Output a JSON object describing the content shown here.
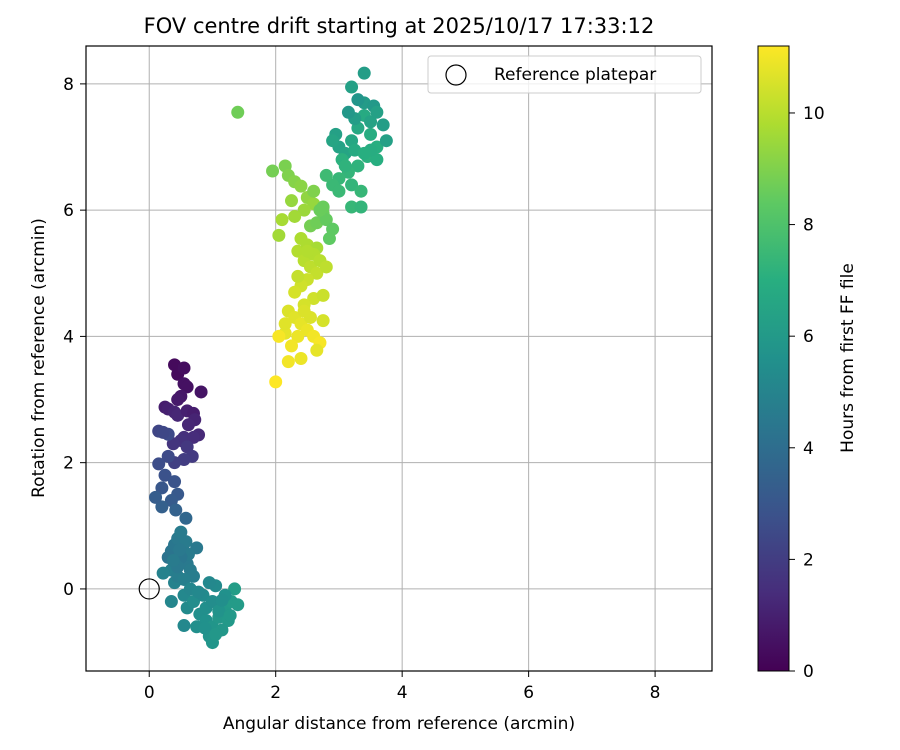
{
  "chart_data": {
    "type": "scatter",
    "title": "FOV centre drift starting at 2025/10/17 17:33:12",
    "xlabel": "Angular distance from reference (arcmin)",
    "ylabel": "Rotation from reference (arcmin)",
    "xlim": [
      -1.0,
      8.9
    ],
    "ylim": [
      -1.3,
      8.6
    ],
    "xticks": [
      0,
      2,
      4,
      6,
      8
    ],
    "yticks": [
      0,
      2,
      4,
      6,
      8
    ],
    "grid": true,
    "legend": {
      "position": "top-right",
      "label": "Reference platepar"
    },
    "reference_point": {
      "x": 0,
      "y": 0
    },
    "colorbar": {
      "label": "Hours from first FF file",
      "min": 0,
      "max": 11.2,
      "ticks": [
        0,
        2,
        4,
        6,
        8,
        10
      ],
      "colormap": "viridis"
    },
    "series": [
      {
        "points": [
          [
            0.4,
            3.55
          ],
          [
            0.45,
            3.4
          ],
          [
            0.55,
            3.5
          ],
          [
            0.55,
            3.25
          ],
          [
            0.6,
            3.2
          ],
          [
            0.82,
            3.12
          ],
          [
            0.5,
            3.05
          ],
          [
            0.45,
            3.0
          ],
          [
            0.25,
            2.88
          ],
          [
            0.3,
            2.85
          ],
          [
            0.4,
            2.8
          ],
          [
            0.45,
            2.75
          ],
          [
            0.6,
            2.82
          ],
          [
            0.7,
            2.78
          ],
          [
            0.72,
            2.68
          ],
          [
            0.62,
            2.6
          ],
          [
            0.78,
            2.44
          ],
          [
            0.7,
            2.4
          ],
          [
            0.55,
            2.4
          ],
          [
            0.5,
            2.35
          ],
          [
            0.38,
            2.3
          ],
          [
            0.3,
            2.45
          ],
          [
            0.15,
            2.5
          ],
          [
            0.22,
            2.48
          ],
          [
            0.6,
            2.25
          ],
          [
            0.68,
            2.1
          ],
          [
            0.55,
            2.05
          ],
          [
            0.4,
            2.0
          ],
          [
            0.3,
            2.1
          ],
          [
            0.15,
            1.98
          ],
          [
            0.25,
            1.8
          ],
          [
            0.2,
            1.6
          ],
          [
            0.4,
            1.7
          ],
          [
            0.45,
            1.5
          ],
          [
            0.35,
            1.4
          ],
          [
            0.2,
            1.3
          ],
          [
            0.1,
            1.45
          ],
          [
            0.42,
            1.25
          ],
          [
            0.58,
            1.12
          ],
          [
            0.3,
            0.5
          ],
          [
            0.35,
            0.6
          ],
          [
            0.4,
            0.7
          ],
          [
            0.45,
            0.8
          ],
          [
            0.5,
            0.9
          ],
          [
            0.55,
            0.6
          ],
          [
            0.6,
            0.4
          ],
          [
            0.65,
            0.3
          ],
          [
            0.7,
            0.2
          ],
          [
            0.75,
            0.65
          ],
          [
            0.35,
            0.3
          ],
          [
            0.4,
            0.1
          ],
          [
            0.45,
            0.2
          ],
          [
            0.55,
            0.15
          ],
          [
            0.62,
            0.55
          ],
          [
            0.22,
            0.25
          ],
          [
            0.5,
            0.5
          ],
          [
            0.45,
            0.35
          ],
          [
            0.58,
            0.75
          ],
          [
            0.48,
            0.62
          ],
          [
            0.38,
            0.45
          ],
          [
            0.35,
            -0.2
          ],
          [
            0.55,
            -0.1
          ],
          [
            0.6,
            -0.3
          ],
          [
            0.7,
            -0.2
          ],
          [
            0.8,
            -0.4
          ],
          [
            0.9,
            -0.5
          ],
          [
            1.0,
            -0.6
          ],
          [
            1.1,
            -0.45
          ],
          [
            1.2,
            -0.3
          ],
          [
            1.3,
            -0.2
          ],
          [
            1.35,
            0.0
          ],
          [
            1.4,
            -0.25
          ],
          [
            1.25,
            -0.5
          ],
          [
            1.15,
            -0.65
          ],
          [
            0.95,
            -0.75
          ],
          [
            0.9,
            -0.3
          ],
          [
            0.85,
            -0.1
          ],
          [
            1.0,
            -0.2
          ],
          [
            1.05,
            0.05
          ],
          [
            0.95,
            0.1
          ],
          [
            0.75,
            -0.6
          ],
          [
            0.55,
            -0.58
          ],
          [
            1.0,
            -0.85
          ],
          [
            1.2,
            -0.1
          ],
          [
            1.1,
            -0.35
          ],
          [
            0.65,
            0.0
          ],
          [
            0.78,
            -0.05
          ],
          [
            0.88,
            -0.62
          ],
          [
            1.28,
            -0.42
          ],
          [
            1.05,
            -0.72
          ],
          [
            1.15,
            -0.18
          ],
          [
            2.95,
            7.2
          ],
          [
            3.0,
            7.0
          ],
          [
            3.1,
            6.9
          ],
          [
            3.2,
            7.1
          ],
          [
            3.3,
            7.3
          ],
          [
            3.4,
            7.5
          ],
          [
            3.5,
            7.2
          ],
          [
            3.6,
            7.0
          ],
          [
            3.45,
            6.85
          ],
          [
            3.3,
            6.7
          ],
          [
            3.15,
            6.6
          ],
          [
            3.0,
            6.5
          ],
          [
            2.9,
            6.4
          ],
          [
            2.8,
            6.55
          ],
          [
            3.2,
            6.4
          ],
          [
            3.35,
            6.3
          ],
          [
            3.25,
            7.45
          ],
          [
            3.4,
            7.7
          ],
          [
            3.55,
            7.65
          ],
          [
            3.7,
            7.35
          ],
          [
            3.75,
            7.1
          ],
          [
            3.6,
            6.8
          ],
          [
            3.15,
            7.55
          ],
          [
            3.3,
            7.75
          ],
          [
            3.2,
            7.95
          ],
          [
            3.4,
            8.17
          ],
          [
            2.9,
            7.1
          ],
          [
            3.05,
            6.8
          ],
          [
            3.5,
            6.95
          ],
          [
            3.25,
            6.95
          ],
          [
            3.1,
            6.7
          ],
          [
            3.4,
            6.9
          ],
          [
            3.0,
            6.3
          ],
          [
            3.2,
            6.05
          ],
          [
            3.35,
            6.05
          ],
          [
            3.5,
            7.4
          ],
          [
            3.6,
            7.55
          ],
          [
            1.4,
            7.55
          ],
          [
            1.95,
            6.62
          ],
          [
            2.15,
            6.7
          ],
          [
            2.2,
            6.55
          ],
          [
            2.3,
            6.45
          ],
          [
            2.4,
            6.38
          ],
          [
            2.5,
            6.2
          ],
          [
            2.6,
            6.1
          ],
          [
            2.45,
            6.0
          ],
          [
            2.3,
            5.9
          ],
          [
            2.1,
            5.85
          ],
          [
            2.05,
            5.6
          ],
          [
            2.55,
            5.75
          ],
          [
            2.65,
            5.8
          ],
          [
            2.75,
            5.95
          ],
          [
            2.8,
            5.85
          ],
          [
            2.9,
            5.7
          ],
          [
            2.4,
            5.55
          ],
          [
            2.35,
            5.35
          ],
          [
            2.5,
            5.45
          ],
          [
            2.65,
            5.4
          ],
          [
            2.7,
            6.0
          ],
          [
            2.25,
            6.15
          ],
          [
            2.6,
            6.3
          ],
          [
            2.85,
            5.55
          ],
          [
            2.75,
            6.05
          ],
          [
            2.45,
            5.2
          ],
          [
            2.55,
            5.1
          ],
          [
            2.65,
            5.0
          ],
          [
            2.5,
            4.9
          ],
          [
            2.4,
            4.8
          ],
          [
            2.3,
            4.7
          ],
          [
            2.6,
            4.6
          ],
          [
            2.75,
            4.65
          ],
          [
            2.2,
            4.4
          ],
          [
            2.3,
            4.3
          ],
          [
            2.4,
            4.2
          ],
          [
            2.5,
            4.1
          ],
          [
            2.6,
            4.0
          ],
          [
            2.7,
            3.9
          ],
          [
            2.35,
            4.0
          ],
          [
            2.25,
            3.85
          ],
          [
            2.15,
            4.05
          ],
          [
            2.05,
            4.0
          ],
          [
            2.2,
            3.6
          ],
          [
            2.4,
            3.65
          ],
          [
            2.65,
            3.78
          ],
          [
            2.0,
            3.28
          ],
          [
            2.55,
            4.3
          ],
          [
            2.45,
            4.5
          ],
          [
            2.6,
            5.3
          ],
          [
            2.7,
            5.2
          ],
          [
            2.8,
            5.1
          ],
          [
            2.5,
            5.35
          ],
          [
            2.35,
            4.95
          ],
          [
            2.15,
            4.2
          ],
          [
            2.45,
            4.4
          ],
          [
            2.75,
            4.25
          ]
        ],
        "hours": [
          0.3,
          0.3,
          0.4,
          0.5,
          0.5,
          0.6,
          0.7,
          0.8,
          0.9,
          1.0,
          1.1,
          1.2,
          1.0,
          0.9,
          1.1,
          1.2,
          1.3,
          1.4,
          1.5,
          1.6,
          1.7,
          2.5,
          2.3,
          2.4,
          1.8,
          1.9,
          2.0,
          2.1,
          2.5,
          2.6,
          2.8,
          3.0,
          2.9,
          3.1,
          3.2,
          3.4,
          3.3,
          3.5,
          3.7,
          4.2,
          4.3,
          4.4,
          4.5,
          4.6,
          4.4,
          4.5,
          4.6,
          4.7,
          4.5,
          4.8,
          4.9,
          4.7,
          4.8,
          4.6,
          4.9,
          4.4,
          4.5,
          4.6,
          4.5,
          4.6,
          5.1,
          5.2,
          5.3,
          5.4,
          5.5,
          5.6,
          5.8,
          5.9,
          6.0,
          6.1,
          6.2,
          6.1,
          6.0,
          5.9,
          5.7,
          5.5,
          5.3,
          5.4,
          5.3,
          5.2,
          5.5,
          5.2,
          5.8,
          5.6,
          5.7,
          5.1,
          5.2,
          5.6,
          6.0,
          5.9,
          5.5,
          6.3,
          6.4,
          6.5,
          6.6,
          6.7,
          6.8,
          6.9,
          7.0,
          7.1,
          7.2,
          7.3,
          7.4,
          7.5,
          7.6,
          7.3,
          7.4,
          6.2,
          6.1,
          6.0,
          6.2,
          6.3,
          7.0,
          5.9,
          5.8,
          6.3,
          6.2,
          6.5,
          7.1,
          6.9,
          6.8,
          7.2,
          7.0,
          7.5,
          7.4,
          7.3,
          6.4,
          6.3,
          8.7,
          8.8,
          8.9,
          9.0,
          9.1,
          9.2,
          9.3,
          9.4,
          9.5,
          9.6,
          9.7,
          9.6,
          8.8,
          8.7,
          8.6,
          8.5,
          8.4,
          9.8,
          9.9,
          9.8,
          9.7,
          8.6,
          9.4,
          9.0,
          8.4,
          8.6,
          10.0,
          10.1,
          10.2,
          10.3,
          10.4,
          10.5,
          10.4,
          10.3,
          10.6,
          10.7,
          10.8,
          10.9,
          11.0,
          11.1,
          10.9,
          11.0,
          10.8,
          11.1,
          11.0,
          10.9,
          10.8,
          11.2,
          10.6,
          10.5,
          9.9,
          10.0,
          10.1,
          9.9,
          10.2,
          10.7,
          10.6,
          10.5
        ]
      }
    ]
  }
}
